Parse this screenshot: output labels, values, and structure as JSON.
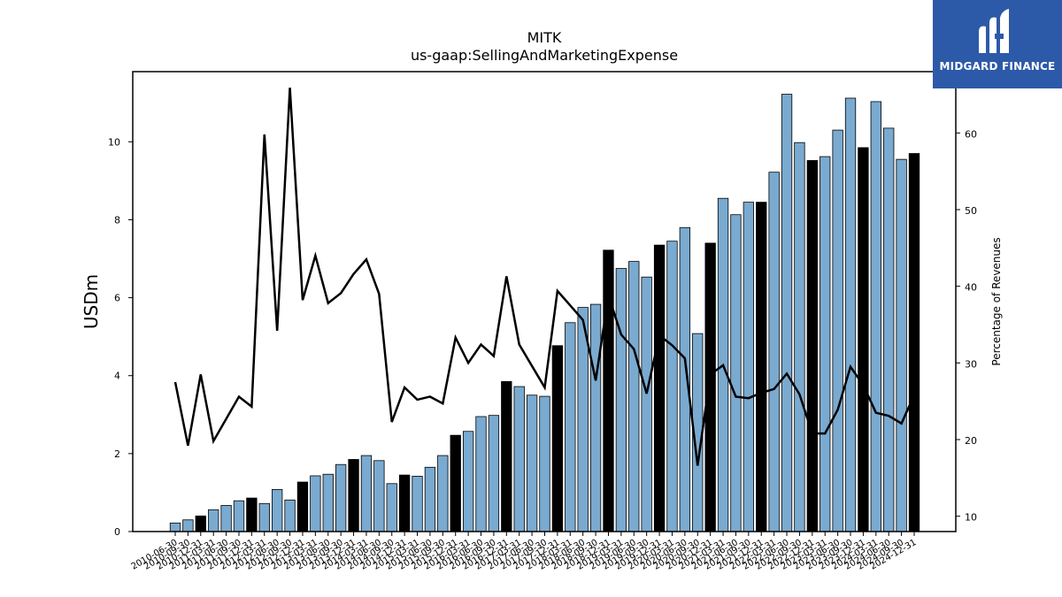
{
  "chart_data": {
    "type": "bar",
    "title": "MITK",
    "subtitle": "us-gaap:SellingAndMarketingExpense",
    "ylabel": "USDm",
    "ylabel_right": "Percentage of Revenues",
    "ylim": [
      0,
      11.8
    ],
    "ylim_right": [
      8,
      68
    ],
    "yticks": [
      0,
      2,
      4,
      6,
      8,
      10
    ],
    "yticks_right": [
      10,
      20,
      30,
      40,
      50,
      60
    ],
    "grid": false,
    "colors": {
      "quarter": "#7aaad0",
      "annual": "#000000",
      "line": "#000000"
    },
    "categories": [
      "2010-06-30",
      "2010-09-30",
      "2010-12-31",
      "2011-03-31",
      "2011-06-30",
      "2011-09-30",
      "2011-12-31",
      "2012-03-31",
      "2012-06-30",
      "2012-09-30",
      "2012-12-31",
      "2013-03-31",
      "2013-06-30",
      "2013-09-30",
      "2013-12-31",
      "2014-03-31",
      "2014-06-30",
      "2014-09-30",
      "2014-12-31",
      "2015-03-31",
      "2015-06-30",
      "2015-09-30",
      "2015-12-31",
      "2016-03-31",
      "2016-06-30",
      "2016-09-30",
      "2016-12-31",
      "2017-03-31",
      "2017-06-30",
      "2017-09-30",
      "2017-12-31",
      "2018-03-31",
      "2018-06-30",
      "2018-09-30",
      "2018-12-31",
      "2019-03-31",
      "2019-06-30",
      "2019-09-30",
      "2019-12-31",
      "2020-03-31",
      "2020-06-30",
      "2020-09-30",
      "2020-12-31",
      "2021-03-31",
      "2021-06-30",
      "2021-09-30",
      "2021-12-31",
      "2022-03-31",
      "2022-06-30",
      "2022-09-30",
      "2022-12-31",
      "2023-03-31",
      "2023-06-30",
      "2023-09-30",
      "2023-12-31",
      "2024-03-31",
      "2024-06-30",
      "2024-09-30",
      "2024-12-31"
    ],
    "bar_kind": [
      "q",
      "q",
      "a",
      "q",
      "q",
      "q",
      "a",
      "q",
      "q",
      "q",
      "a",
      "q",
      "q",
      "q",
      "a",
      "q",
      "q",
      "q",
      "a",
      "q",
      "q",
      "q",
      "a",
      "q",
      "q",
      "q",
      "a",
      "q",
      "q",
      "q",
      "a",
      "q",
      "q",
      "q",
      "a",
      "q",
      "q",
      "q",
      "a",
      "q",
      "q",
      "q",
      "a",
      "q",
      "q",
      "q",
      "a",
      "q",
      "q",
      "q",
      "a",
      "q",
      "q",
      "q",
      "a",
      "q",
      "q",
      "q",
      "a"
    ],
    "series": [
      {
        "name": "USDm",
        "values": [
          0.22,
          0.3,
          0.4,
          0.56,
          0.67,
          0.79,
          0.86,
          0.72,
          1.08,
          0.81,
          1.27,
          1.43,
          1.47,
          1.72,
          1.85,
          1.95,
          1.82,
          1.23,
          1.45,
          1.42,
          1.65,
          1.95,
          2.47,
          2.57,
          2.95,
          2.98,
          3.85,
          3.72,
          3.5,
          3.47,
          4.77,
          5.36,
          5.75,
          5.83,
          7.22,
          6.75,
          6.93,
          6.53,
          7.35,
          7.45,
          7.8,
          5.08,
          7.4,
          8.55,
          8.13,
          8.45,
          8.45,
          9.22,
          11.22,
          9.98,
          9.52,
          9.62,
          10.3,
          11.12,
          9.85,
          11.03,
          10.35,
          9.55,
          9.7
        ]
      },
      {
        "name": "Percentage of Revenues",
        "values": [
          27.5,
          19.2,
          28.5,
          19.8,
          22.7,
          25.6,
          24.3,
          59.8,
          34.2,
          65.9,
          38.2,
          44.0,
          37.8,
          39.1,
          41.6,
          43.5,
          39.0,
          22.3,
          26.8,
          25.2,
          25.6,
          24.7,
          33.3,
          30.0,
          32.4,
          30.9,
          41.3,
          32.4,
          29.6,
          26.8,
          39.4,
          37.5,
          35.6,
          27.7,
          38.8,
          33.7,
          31.8,
          26.0,
          33.6,
          32.3,
          30.6,
          16.6,
          28.5,
          29.7,
          25.6,
          25.4,
          26.1,
          26.6,
          28.6,
          25.9,
          20.8,
          20.8,
          23.9,
          29.5,
          27.1,
          23.5,
          23.1,
          22.1,
          25.8
        ]
      }
    ]
  },
  "logo": {
    "text": "MIDGARD FINANCE"
  }
}
